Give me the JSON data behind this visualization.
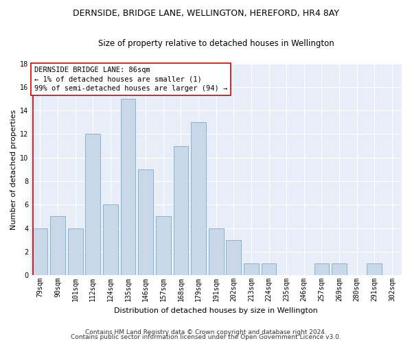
{
  "title": "DERNSIDE, BRIDGE LANE, WELLINGTON, HEREFORD, HR4 8AY",
  "subtitle": "Size of property relative to detached houses in Wellington",
  "xlabel": "Distribution of detached houses by size in Wellington",
  "ylabel": "Number of detached properties",
  "categories": [
    "79sqm",
    "90sqm",
    "101sqm",
    "112sqm",
    "124sqm",
    "135sqm",
    "146sqm",
    "157sqm",
    "168sqm",
    "179sqm",
    "191sqm",
    "202sqm",
    "213sqm",
    "224sqm",
    "235sqm",
    "246sqm",
    "257sqm",
    "269sqm",
    "280sqm",
    "291sqm",
    "302sqm"
  ],
  "values": [
    4,
    5,
    4,
    12,
    6,
    15,
    9,
    5,
    11,
    13,
    4,
    3,
    1,
    1,
    0,
    0,
    1,
    1,
    0,
    1,
    0
  ],
  "bar_color": "#c8d8e8",
  "bar_edge_color": "#7aaac8",
  "highlight_color": "#cc0000",
  "annotation_line1": "DERNSIDE BRIDGE LANE: 86sqm",
  "annotation_line2": "← 1% of detached houses are smaller (1)",
  "annotation_line3": "99% of semi-detached houses are larger (94) →",
  "annotation_box_color": "#ffffff",
  "annotation_box_edge_color": "#cc0000",
  "ylim": [
    0,
    18
  ],
  "yticks": [
    0,
    2,
    4,
    6,
    8,
    10,
    12,
    14,
    16,
    18
  ],
  "background_color": "#e8eef8",
  "grid_color": "#ffffff",
  "footer_line1": "Contains HM Land Registry data © Crown copyright and database right 2024.",
  "footer_line2": "Contains public sector information licensed under the Open Government Licence v3.0.",
  "title_fontsize": 9,
  "subtitle_fontsize": 8.5,
  "xlabel_fontsize": 8,
  "ylabel_fontsize": 8,
  "tick_fontsize": 7,
  "annotation_fontsize": 7.5,
  "footer_fontsize": 6.5
}
